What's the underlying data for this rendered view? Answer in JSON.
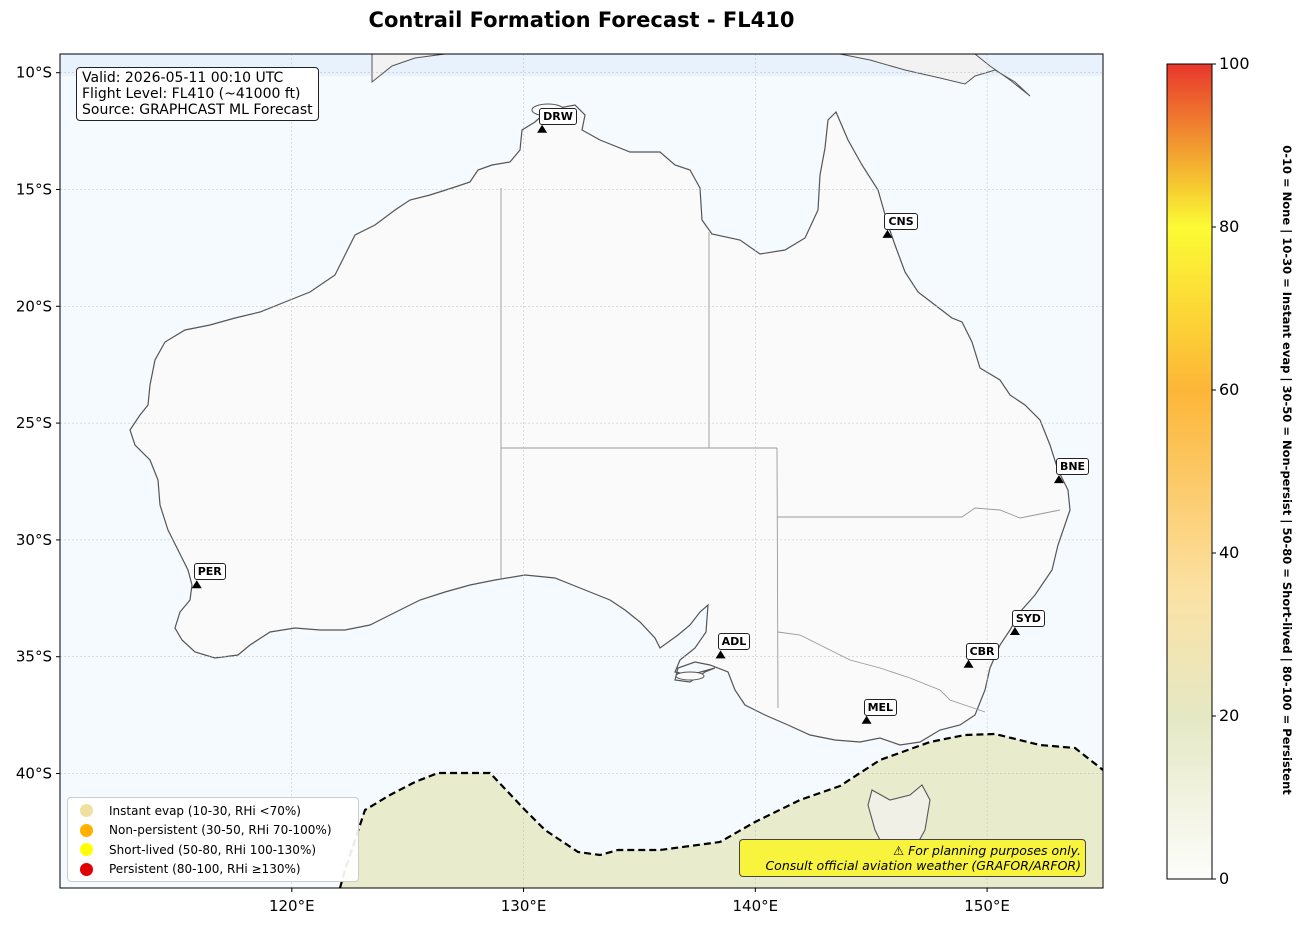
{
  "title": "Contrail Formation Forecast - FL410",
  "info": {
    "valid": "Valid: 2026-05-11 00:10 UTC",
    "flight_level": "Flight Level: FL410 (~41000 ft)",
    "source": "Source: GRAPHCAST ML Forecast"
  },
  "axes": {
    "lat_ticks": [
      "10°S",
      "15°S",
      "20°S",
      "25°S",
      "30°S",
      "35°S",
      "40°S"
    ],
    "lon_ticks": [
      "120°E",
      "130°E",
      "140°E",
      "150°E"
    ],
    "lon_range": [
      110,
      155
    ],
    "lat_range": [
      -44.9,
      -9.2
    ],
    "grid": true
  },
  "airports": [
    {
      "code": "DRW",
      "lon": 130.8,
      "lat": -12.4
    },
    {
      "code": "CNS",
      "lon": 145.7,
      "lat": -16.9
    },
    {
      "code": "BNE",
      "lon": 153.1,
      "lat": -27.4
    },
    {
      "code": "PER",
      "lon": 115.9,
      "lat": -31.9
    },
    {
      "code": "ADL",
      "lon": 138.5,
      "lat": -34.9
    },
    {
      "code": "SYD",
      "lon": 151.2,
      "lat": -33.9
    },
    {
      "code": "CBR",
      "lon": 149.2,
      "lat": -35.3
    },
    {
      "code": "MEL",
      "lon": 144.8,
      "lat": -37.7
    }
  ],
  "legend": [
    {
      "label": "Instant evap (10-30, RHi <70%)",
      "color": "#f0e0a0"
    },
    {
      "label": "Non-persistent (30-50, RHi 70-100%)",
      "color": "#ffb000"
    },
    {
      "label": "Short-lived (50-80, RHi 100-130%)",
      "color": "#ffff00"
    },
    {
      "label": "Persistent (80-100, RHi ≥130%)",
      "color": "#e00000"
    }
  ],
  "disclaimer": {
    "line1": "⚠ For planning purposes only.",
    "line2": "Consult official aviation weather (GRAFOR/ARFOR)"
  },
  "colorbar": {
    "ticks": [
      "0",
      "20",
      "40",
      "60",
      "80",
      "100"
    ],
    "range": [
      0,
      100
    ],
    "label": "0-10 = None  |  10-30 = Instant evap  |  30-50 = Non-persist  |  50-80 = Short-lived  |  80-100 = Persistent",
    "colors": [
      "#fdfdfb",
      "#e5e8c4",
      "#fbe2a4",
      "#fdb638",
      "#fbfb34",
      "#e8372c"
    ]
  },
  "colors": {
    "ocean": "#f5faff",
    "land": "#fafafa",
    "contrail_region": "#e8ebc9"
  }
}
